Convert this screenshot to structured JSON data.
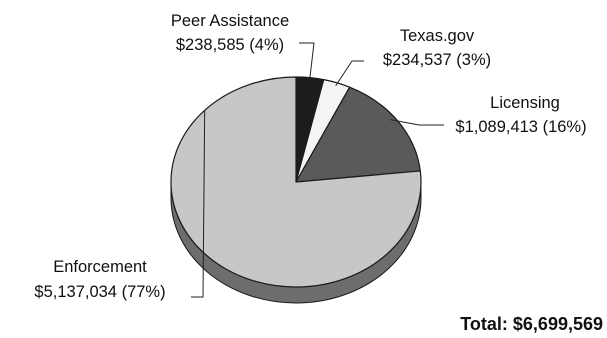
{
  "chart_data": {
    "type": "pie",
    "title": "",
    "categories": [
      "Peer Assistance",
      "Texas.gov",
      "Licensing",
      "Enforcement"
    ],
    "values": [
      238585,
      234537,
      1089413,
      5137034
    ],
    "value_labels": [
      "$238,585 (4%)",
      "$234,537 (3%)",
      "$1,089,413 (16%)",
      "$5,137,034 (77%)"
    ],
    "colors": [
      "#1c1c1c",
      "#f4f4f4",
      "#5a5a5a",
      "#c7c7c7"
    ],
    "total_label": "Total: $6,699,569",
    "style": "3d",
    "legend": "none"
  }
}
